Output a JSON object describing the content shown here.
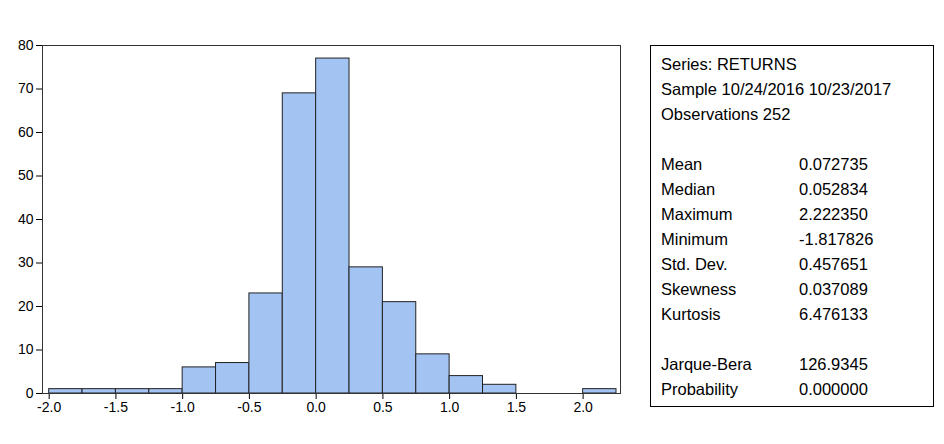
{
  "chart_data": {
    "type": "histogram",
    "bins": [
      -2.0,
      -1.75,
      -1.5,
      -1.25,
      -1.0,
      -0.75,
      -0.5,
      -0.25,
      0.0,
      0.25,
      0.5,
      0.75,
      1.0,
      1.25,
      1.5,
      1.75,
      2.0,
      2.25
    ],
    "values": [
      1,
      1,
      1,
      1,
      6,
      7,
      23,
      69,
      77,
      29,
      21,
      9,
      4,
      2,
      0,
      0,
      1
    ],
    "color": "#a3c3f3",
    "xlim": [
      -2.05,
      2.28
    ],
    "xticks": [
      {
        "value": -2.0,
        "label": "-2.0"
      },
      -1.5,
      {
        "value": -1.0,
        "label": "-1.0"
      },
      -0.5,
      {
        "value": 0.0,
        "label": "0.0"
      },
      0.5,
      {
        "value": 1.0,
        "label": "1.0"
      },
      1.5,
      {
        "value": 2.0,
        "label": "2.0"
      }
    ],
    "ylim": [
      0,
      80
    ],
    "yticks": [
      0,
      10,
      20,
      30,
      40,
      50,
      60,
      70,
      80
    ],
    "grid": false,
    "stats_box": {
      "header": [
        "Series: RETURNS",
        "Sample 10/24/2016 10/23/2017",
        "Observations 252"
      ],
      "rows": [
        {
          "label": "Mean",
          "value": "0.072735"
        },
        {
          "label": "Median",
          "value": "0.052834"
        },
        {
          "label": "Maximum",
          "value": "2.222350"
        },
        {
          "label": "Minimum",
          "value": "-1.817826"
        },
        {
          "label": "Std. Dev.",
          "value": "0.457651"
        },
        {
          "label": "Skewness",
          "value": "0.037089"
        },
        {
          "label": "Kurtosis",
          "value": "6.476133"
        }
      ],
      "test_rows": [
        {
          "label": "Jarque-Bera",
          "value": "126.9345"
        },
        {
          "label": "Probability",
          "value": "0.000000"
        }
      ]
    }
  }
}
